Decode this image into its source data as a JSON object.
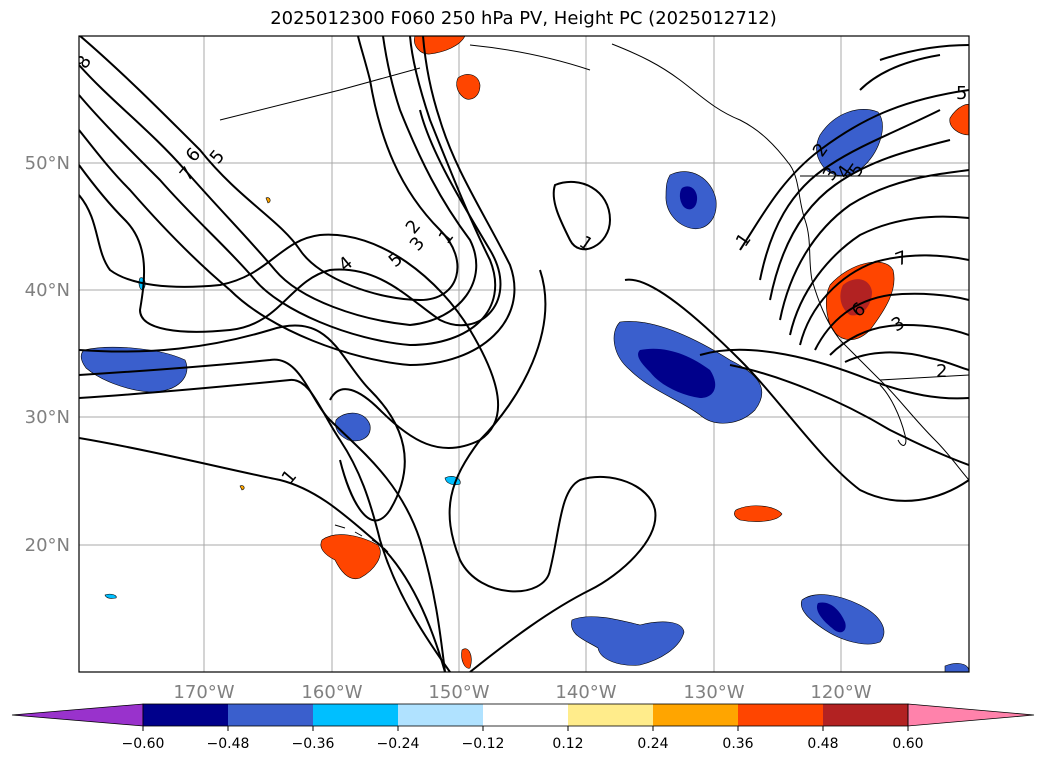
{
  "title": "2025012300 F060 250 hPa PV, Height PC (2025012712)",
  "latitude_labels": [
    "50°N",
    "40°N",
    "30°N",
    "20°N"
  ],
  "longitude_labels": [
    "170°W",
    "160°W",
    "150°W",
    "140°W",
    "130°W",
    "120°W"
  ],
  "colorbar": {
    "ticks": [
      "−0.60",
      "−0.48",
      "−0.36",
      "−0.24",
      "−0.12",
      "0.12",
      "0.24",
      "0.36",
      "0.48",
      "0.60"
    ],
    "colors": [
      "#9932cc",
      "#00008b",
      "#3a5fcd",
      "#00bfff",
      "#b0e2ff",
      "#ffffff",
      "#ffec8b",
      "#ffa500",
      "#ff4500",
      "#b22222",
      "#ff82ab"
    ]
  },
  "contour_labels": [
    "8",
    "7",
    "6",
    "5",
    "2",
    "3",
    "1",
    "4",
    "5",
    "1",
    "1",
    "1",
    "2",
    "3",
    "4",
    "5",
    "7",
    "6",
    "3",
    "2",
    "5"
  ],
  "colors": {
    "negative_dark": "#00008b",
    "negative_mid": "#3a5fcd",
    "negative_light": "#00bfff",
    "positive_light": "#ffec8b",
    "positive_mid": "#ff4500",
    "positive_dark": "#b22222",
    "grid": "#a9a9a9",
    "contour": "#000000"
  }
}
